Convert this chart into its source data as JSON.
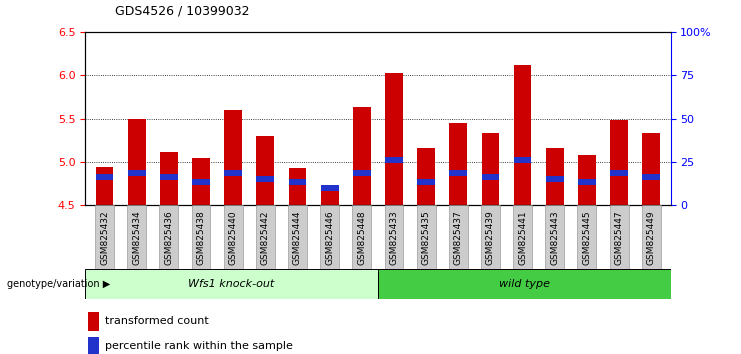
{
  "title": "GDS4526 / 10399032",
  "samples": [
    "GSM825432",
    "GSM825434",
    "GSM825436",
    "GSM825438",
    "GSM825440",
    "GSM825442",
    "GSM825444",
    "GSM825446",
    "GSM825448",
    "GSM825433",
    "GSM825435",
    "GSM825437",
    "GSM825439",
    "GSM825441",
    "GSM825443",
    "GSM825445",
    "GSM825447",
    "GSM825449"
  ],
  "red_values": [
    4.94,
    5.5,
    5.12,
    5.05,
    5.6,
    5.3,
    4.93,
    4.7,
    5.63,
    6.02,
    5.16,
    5.45,
    5.33,
    6.12,
    5.16,
    5.08,
    5.48,
    5.33
  ],
  "blue_values": [
    4.83,
    4.87,
    4.83,
    4.77,
    4.87,
    4.8,
    4.77,
    4.7,
    4.87,
    5.02,
    4.77,
    4.87,
    4.83,
    5.02,
    4.8,
    4.77,
    4.87,
    4.83
  ],
  "group1_label": "Wfs1 knock-out",
  "group2_label": "wild type",
  "group_label_prefix": "genotype/variation",
  "group1_count": 9,
  "group2_count": 9,
  "ymin": 4.5,
  "ymax": 6.5,
  "yticks": [
    4.5,
    5.0,
    5.5,
    6.0,
    6.5
  ],
  "right_yticks": [
    0,
    25,
    50,
    75,
    100
  ],
  "right_ytick_labels": [
    "0",
    "25",
    "50",
    "75",
    "100%"
  ],
  "bar_color": "#cc0000",
  "blue_color": "#2233cc",
  "group1_bg": "#ccffcc",
  "group2_bg": "#44cc44",
  "bar_width": 0.55,
  "legend_items": [
    "transformed count",
    "percentile rank within the sample"
  ],
  "background_color": "#ffffff",
  "tick_bg": "#cccccc"
}
